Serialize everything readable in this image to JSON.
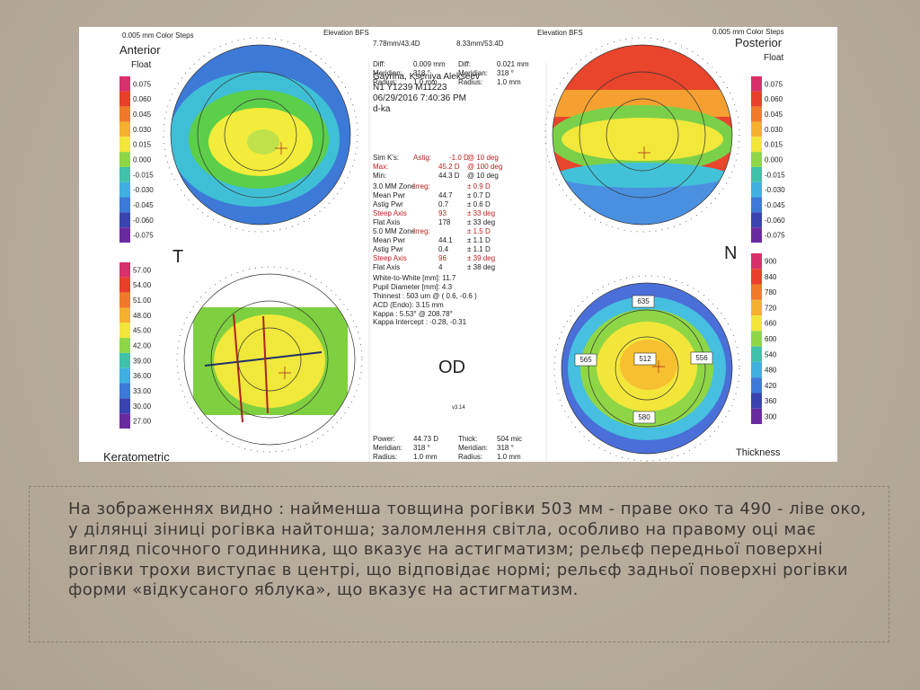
{
  "printout": {
    "top_left": {
      "steps": "0.005 mm Color Steps",
      "title": "Anterior",
      "subtitle": "Float",
      "scale": [
        "0.075",
        "0.060",
        "0.045",
        "0.030",
        "0.015",
        "0.000",
        "-0.015",
        "-0.030",
        "-0.045",
        "-0.060",
        "-0.075"
      ]
    },
    "top_center": {
      "title": "Elevation BFS",
      "bfs_left": "7.78mm/43.4D",
      "bfs_right": "8.33mm/53.4D",
      "title_right": "Elevation BFS"
    },
    "top_right": {
      "steps": "0.005 mm Color Steps",
      "title": "Posterior",
      "subtitle": "Float",
      "scale": [
        "0.075",
        "0.060",
        "0.045",
        "0.030",
        "0.015",
        "0.000",
        "-0.015",
        "-0.030",
        "-0.045",
        "-0.060",
        "-0.075"
      ]
    },
    "bottom_left": {
      "title": "Keratometric",
      "scale": [
        "57.00",
        "54.00",
        "51.00",
        "48.00",
        "45.00",
        "42.00",
        "39.00",
        "36.00",
        "33.00",
        "30.00",
        "27.00"
      ]
    },
    "bottom_right": {
      "title": "Thickness",
      "scale": [
        "900",
        "840",
        "780",
        "720",
        "660",
        "600",
        "540",
        "480",
        "420",
        "360",
        "300"
      ],
      "points": [
        "635",
        "565",
        "512",
        "556",
        "580"
      ]
    },
    "side_labels": [
      "T",
      "N",
      "OD"
    ],
    "version": "v3.14",
    "info": [
      [
        "Diff:",
        "0.009 mm",
        "Diff:",
        "0.021 mm"
      ],
      [
        "Meridian:",
        "318 °",
        "Meridian:",
        "318 °"
      ],
      [
        "Radius:",
        "1.0 mm",
        "Radius:",
        "1.0 mm"
      ],
      [
        "Gavrina, Kseniya Alekseev"
      ],
      [
        "N1 Y1239 M11223"
      ],
      [
        "06/29/2016 7:40:36 PM"
      ],
      [
        "d-ka"
      ],
      [
        "Sim K's:",
        "Astig:",
        "-1.0 D",
        "@ 10 deg"
      ],
      [
        "Max:",
        "45.2 D",
        "@ 100 deg"
      ],
      [
        "Min:",
        "44.3 D",
        "@ 10 deg"
      ],
      [
        "3.0 MM Zone:",
        "Irreg:",
        "± 0.9 D"
      ],
      [
        "Mean Pwr",
        "44.7",
        "± 0.7 D"
      ],
      [
        "Astig Pwr",
        "0.7",
        "± 0.6 D"
      ],
      [
        "Steep Axis",
        "93",
        "± 33 deg"
      ],
      [
        "Flat Axis",
        "178",
        "± 33 deg"
      ],
      [
        "5.0 MM Zone:",
        "Irreg:",
        "± 1.5 D"
      ],
      [
        "Mean Pwr",
        "44.1",
        "± 1.1 D"
      ],
      [
        "Astig Pwr",
        "0.4",
        "± 1.1 D"
      ],
      [
        "Steep Axis",
        "96",
        "± 39 deg"
      ],
      [
        "Flat Axis",
        "4",
        "± 38 deg"
      ],
      [
        "White-to-White [mm]: 11.7"
      ],
      [
        "Pupil Diameter [mm]: 4.3"
      ],
      [
        "Thinnest : 503 um @ ( 0.6, -0.6 )"
      ],
      [
        "ACD (Endo): 3.15 mm"
      ],
      [
        "Kappa : 5.53° @ 208.78°"
      ],
      [
        "Kappa Intercept : -0.28, -0.31"
      ],
      [
        "Power:",
        "44.73 D",
        "Thick:",
        "504 mic"
      ],
      [
        "Meridian:",
        "318 °",
        "Meridian:",
        "318 °"
      ],
      [
        "Radius:",
        "1.0 mm",
        "Radius:",
        "1.0 mm"
      ]
    ]
  },
  "caption": "На зображеннях видно : найменша товщина рогівки 503 мм - праве око та 490 - ліве око, у ділянці зіниці рогівка найтонша; заломлення світла, особливо на правому оці має вигляд пісочного годинника, що вказує на астигматизм; рельєф передньої поверхні рогівки трохи виступає в центрі, що відповідає нормі; рельєф задньої поверхні рогівки форми «відкусаного яблука», що вказує на астигматизм."
}
